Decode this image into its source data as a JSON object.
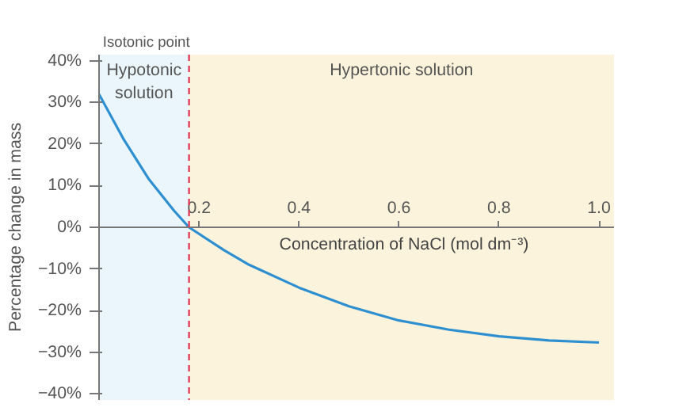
{
  "chart_data": {
    "type": "line",
    "xlabel": "Concentration of NaCl (mol dm⁻³)",
    "ylabel": "Percentage change in mass",
    "series": [
      {
        "color": "#2e8fd0",
        "x": [
          0,
          0.05,
          0.1,
          0.15,
          0.18,
          0.25,
          0.3,
          0.4,
          0.5,
          0.6,
          0.7,
          0.8,
          0.9,
          1.0
        ],
        "values": [
          32,
          21,
          11.5,
          4,
          0,
          -5.5,
          -9,
          -14.5,
          -19,
          -22.4,
          -24.6,
          -26.2,
          -27.2,
          -27.7
        ]
      }
    ],
    "xlim": [
      0,
      1.03
    ],
    "ylim": [
      -41.5,
      41.5
    ],
    "xticks": [
      0.2,
      0.4,
      0.6,
      0.8,
      {
        "value": 1.0,
        "label": "1.0"
      }
    ],
    "yticks": [
      {
        "value": -40,
        "label": "−40%"
      },
      {
        "value": -30,
        "label": "−30%"
      },
      {
        "value": -20,
        "label": "−20%"
      },
      {
        "value": -10,
        "label": "−10%"
      },
      {
        "value": 0,
        "label": "0%"
      },
      {
        "value": 10,
        "label": "10%"
      },
      {
        "value": 20,
        "label": "20%"
      },
      {
        "value": 30,
        "label": "30%"
      },
      {
        "value": 40,
        "label": "40%"
      }
    ],
    "ref_lines": [
      {
        "axis": "x",
        "value": 0.18,
        "label": "Isotonic point",
        "color": "#e0405a",
        "line_style": "dashed"
      }
    ],
    "bands": [
      {
        "axis": "x",
        "from": 0,
        "to": 0.18,
        "label": "Hypotonic\nsolution",
        "color": "#eaf6fc"
      },
      {
        "axis": "x",
        "from": 0.18,
        "to": 1.03,
        "label": "Hypertonic solution",
        "color": "#fcf3dc"
      }
    ],
    "grid": false,
    "marker": "none",
    "line_style": "solid"
  }
}
